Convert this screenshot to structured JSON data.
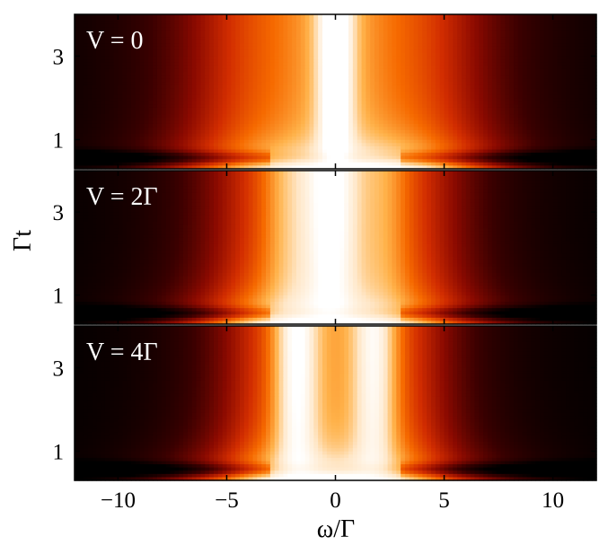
{
  "chart_data": {
    "type": "heatmap",
    "title": "",
    "xlabel": "ω/Γ",
    "ylabel": "Γt",
    "xlim": [
      -12,
      12
    ],
    "ylim": [
      0.3,
      4.0
    ],
    "x_ticks": [
      -10,
      -5,
      0,
      5,
      10
    ],
    "x_tick_labels": [
      "−10",
      "−5",
      "0",
      "5",
      "10"
    ],
    "y_ticks": [
      1,
      3
    ],
    "y_tick_labels": [
      "1",
      "3"
    ],
    "colormap": [
      "#000000",
      "#3a0000",
      "#8c0a00",
      "#d22d00",
      "#f66a00",
      "#ffb24a",
      "#ffe7c8",
      "#ffffff"
    ],
    "panels": [
      {
        "label": "V = 0",
        "V": 0,
        "steady_state_peaks": [
          {
            "omega": 0,
            "width": 0.55,
            "amplitude": 0.95
          },
          {
            "omega": 0,
            "width": 1.5,
            "amplitude": 0.35
          }
        ],
        "background_halfwidth": 6.5
      },
      {
        "label": "V = 2Γ",
        "V": 2,
        "steady_state_peaks": [
          {
            "omega": -0.2,
            "width": 1.0,
            "amplitude": 1.0
          },
          {
            "omega": -2.2,
            "width": 0.8,
            "amplitude": 0.35
          },
          {
            "omega": 2.2,
            "width": 0.8,
            "amplitude": 0.3
          }
        ],
        "background_halfwidth": 5.5
      },
      {
        "label": "V = 4Γ",
        "V": 4,
        "steady_state_peaks": [
          {
            "omega": -1.8,
            "width": 0.7,
            "amplitude": 0.85
          },
          {
            "omega": 1.8,
            "width": 0.7,
            "amplitude": 0.75
          },
          {
            "omega": 0,
            "width": 1.6,
            "amplitude": 0.2
          }
        ],
        "background_halfwidth": 5.0
      }
    ]
  }
}
